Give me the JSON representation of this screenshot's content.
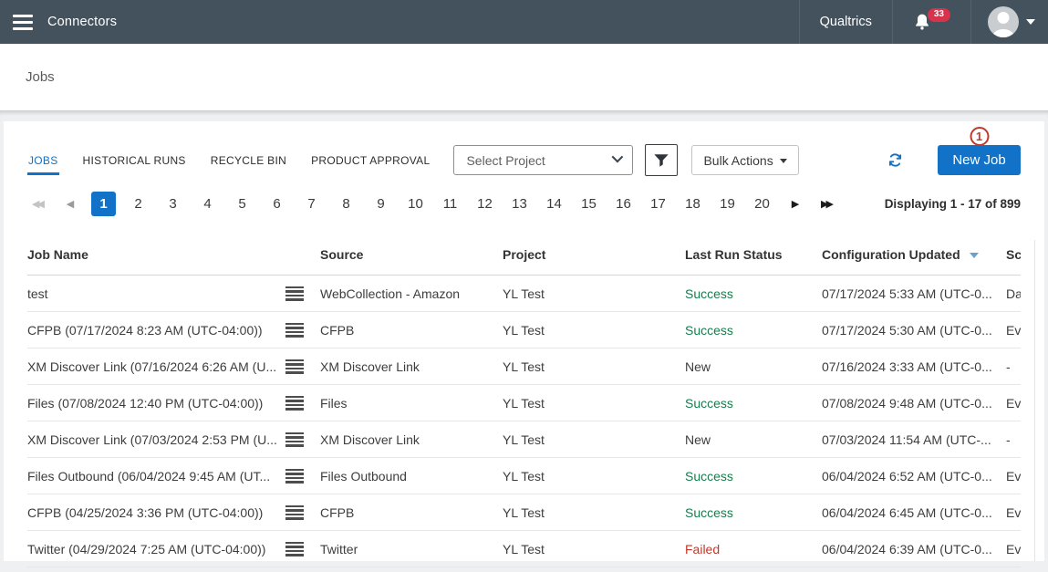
{
  "topbar": {
    "app_title": "Connectors",
    "brand": "Qualtrics",
    "notification_count": "33"
  },
  "page": {
    "title": "Jobs"
  },
  "tabs": [
    {
      "label": "JOBS",
      "active": true
    },
    {
      "label": "HISTORICAL RUNS",
      "active": false
    },
    {
      "label": "RECYCLE BIN",
      "active": false
    },
    {
      "label": "PRODUCT APPROVAL",
      "active": false
    }
  ],
  "toolbar": {
    "project_select_value": "Select Project",
    "bulk_actions_label": "Bulk Actions",
    "new_job_label": "New Job",
    "annotation_badge": "1"
  },
  "pagination": {
    "pages": [
      "1",
      "2",
      "3",
      "4",
      "5",
      "6",
      "7",
      "8",
      "9",
      "10",
      "11",
      "12",
      "13",
      "14",
      "15",
      "16",
      "17",
      "18",
      "19",
      "20"
    ],
    "active_page": "1",
    "summary": "Displaying 1 - 17 of 899"
  },
  "table": {
    "columns": [
      "Job Name",
      "Source",
      "Project",
      "Last Run Status",
      "Configuration Updated",
      "Sc"
    ],
    "sorted_column": "Configuration Updated",
    "sort_direction": "desc",
    "rows": [
      {
        "name": "test",
        "source": "WebCollection - Amazon",
        "project": "YL Test",
        "status": "Success",
        "status_type": "success",
        "updated": "07/17/2024 5:33 AM (UTC-0...",
        "schedule": "Da"
      },
      {
        "name": "CFPB (07/17/2024 8:23 AM (UTC-04:00))",
        "source": "CFPB",
        "project": "YL Test",
        "status": "Success",
        "status_type": "success",
        "updated": "07/17/2024 5:30 AM (UTC-0...",
        "schedule": "Ev"
      },
      {
        "name": "XM Discover Link (07/16/2024 6:26 AM (U...",
        "source": "XM Discover Link",
        "project": "YL Test",
        "status": "New",
        "status_type": "new",
        "updated": "07/16/2024 3:33 AM (UTC-0...",
        "schedule": "-"
      },
      {
        "name": "Files (07/08/2024 12:40 PM (UTC-04:00))",
        "source": "Files",
        "project": "YL Test",
        "status": "Success",
        "status_type": "success",
        "updated": "07/08/2024 9:48 AM (UTC-0...",
        "schedule": "Ev"
      },
      {
        "name": "XM Discover Link (07/03/2024 2:53 PM (U...",
        "source": "XM Discover Link",
        "project": "YL Test",
        "status": "New",
        "status_type": "new",
        "updated": "07/03/2024 11:54 AM (UTC-...",
        "schedule": "-"
      },
      {
        "name": "Files Outbound (06/04/2024 9:45 AM (UT...",
        "source": "Files Outbound",
        "project": "YL Test",
        "status": "Success",
        "status_type": "success",
        "updated": "06/04/2024 6:52 AM (UTC-0...",
        "schedule": "Ev"
      },
      {
        "name": "CFPB (04/25/2024 3:36 PM (UTC-04:00))",
        "source": "CFPB",
        "project": "YL Test",
        "status": "Success",
        "status_type": "success",
        "updated": "06/04/2024 6:45 AM (UTC-0...",
        "schedule": "Ev"
      },
      {
        "name": "Twitter (04/29/2024 7:25 AM (UTC-04:00))",
        "source": "Twitter",
        "project": "YL Test",
        "status": "Failed",
        "status_type": "failed",
        "updated": "06/04/2024 6:39 AM (UTC-0...",
        "schedule": "Ev"
      }
    ]
  },
  "icons": [
    "hamburger-menu-icon",
    "bell-icon",
    "avatar",
    "caret-down-icon",
    "select-chevron-icon",
    "filter-funnel-icon",
    "bulk-caret-icon",
    "refresh-icon",
    "annotation-circle",
    "first-page-icon",
    "prev-page-icon",
    "next-page-icon",
    "last-page-icon",
    "sort-desc-icon",
    "row-menu-icon"
  ],
  "colors": {
    "topbar_bg": "#44525d",
    "accent_blue": "#1172c8",
    "success_green": "#177d4e",
    "failed_red": "#c0392b",
    "badge_red": "#d8334a",
    "annotation_red": "#c0392b"
  }
}
